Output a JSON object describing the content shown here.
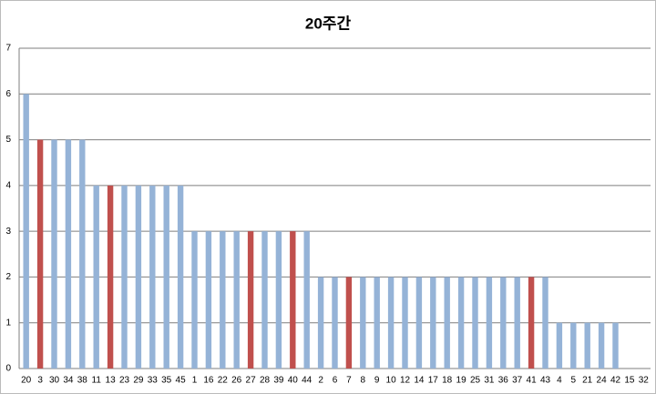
{
  "chart_data": {
    "type": "bar",
    "title": "20주간",
    "categories": [
      "20",
      "3",
      "30",
      "34",
      "38",
      "11",
      "13",
      "23",
      "29",
      "33",
      "35",
      "45",
      "1",
      "16",
      "22",
      "26",
      "27",
      "28",
      "39",
      "40",
      "44",
      "2",
      "6",
      "7",
      "8",
      "9",
      "10",
      "12",
      "14",
      "17",
      "18",
      "19",
      "25",
      "31",
      "36",
      "37",
      "41",
      "43",
      "4",
      "5",
      "21",
      "24",
      "42",
      "15",
      "32"
    ],
    "values": [
      6,
      5,
      5,
      5,
      5,
      4,
      4,
      4,
      4,
      4,
      4,
      4,
      3,
      3,
      3,
      3,
      3,
      3,
      3,
      3,
      3,
      2,
      2,
      2,
      2,
      2,
      2,
      2,
      2,
      2,
      2,
      2,
      2,
      2,
      2,
      2,
      2,
      2,
      1,
      1,
      1,
      1,
      1,
      0,
      0
    ],
    "colors": [
      "#95b3d7",
      "#c0504d",
      "#95b3d7",
      "#95b3d7",
      "#95b3d7",
      "#95b3d7",
      "#c0504d",
      "#95b3d7",
      "#95b3d7",
      "#95b3d7",
      "#95b3d7",
      "#95b3d7",
      "#95b3d7",
      "#95b3d7",
      "#95b3d7",
      "#95b3d7",
      "#c0504d",
      "#95b3d7",
      "#95b3d7",
      "#c0504d",
      "#95b3d7",
      "#95b3d7",
      "#95b3d7",
      "#c0504d",
      "#95b3d7",
      "#95b3d7",
      "#95b3d7",
      "#95b3d7",
      "#95b3d7",
      "#95b3d7",
      "#95b3d7",
      "#95b3d7",
      "#95b3d7",
      "#95b3d7",
      "#95b3d7",
      "#95b3d7",
      "#c0504d",
      "#95b3d7",
      "#95b3d7",
      "#95b3d7",
      "#95b3d7",
      "#95b3d7",
      "#95b3d7",
      "#95b3d7",
      "#95b3d7"
    ],
    "ylim": [
      0,
      7
    ],
    "yticks": [
      0,
      1,
      2,
      3,
      4,
      5,
      6,
      7
    ],
    "grid": true
  }
}
